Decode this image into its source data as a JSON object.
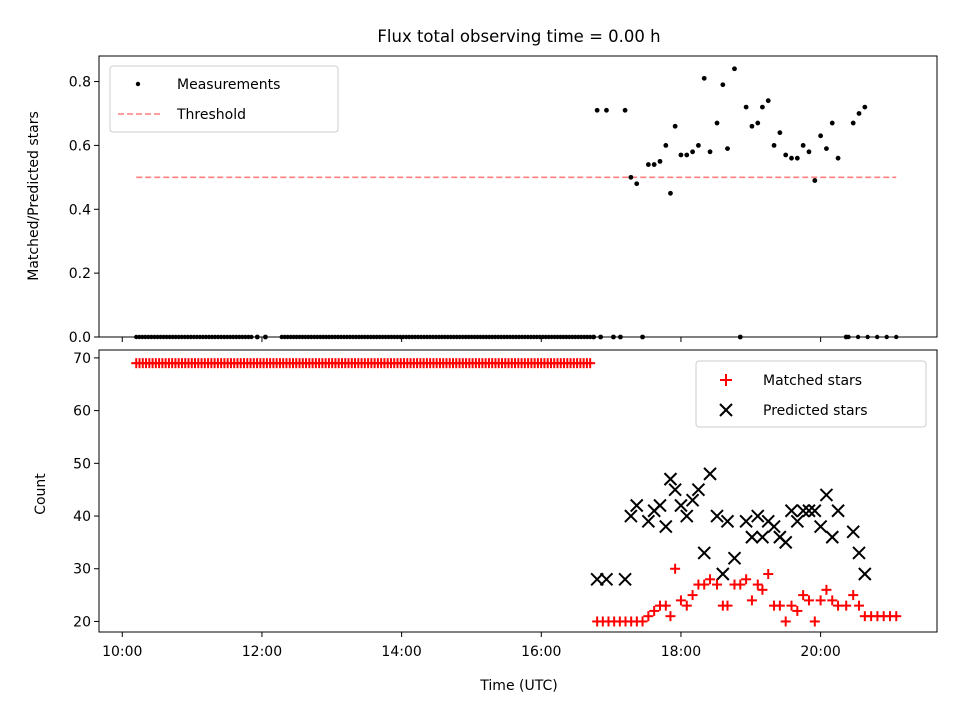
{
  "figure": {
    "title": "Flux total observing time = 0.00 h",
    "xlabel": "Time (UTC)"
  },
  "chart_data": [
    {
      "type": "scatter",
      "title": "Flux total observing time = 0.00 h",
      "xlabel": "",
      "ylabel": "Matched/Predicted stars",
      "xlim": [
        "09:40",
        "21:40"
      ],
      "ylim": [
        0,
        0.88
      ],
      "grid": false,
      "legend": "top-left",
      "yticks": [
        0.0,
        0.2,
        0.4,
        0.6,
        0.8
      ],
      "ytick_labels": [
        "0.0",
        "0.2",
        "0.4",
        "0.6",
        "0.8"
      ],
      "series": [
        {
          "name": "Measurements",
          "marker": "dot",
          "color": "#000000",
          "zero_runs": [
            {
              "start": "10:12",
              "end": "11:51",
              "count": 39
            },
            {
              "start": "12:17",
              "end": "16:42",
              "count": 105
            },
            {
              "start": "20:24",
              "end": "21:05",
              "count": 6
            }
          ],
          "points": [
            {
              "x": "11:56",
              "y": 0
            },
            {
              "x": "12:03",
              "y": 0
            },
            {
              "x": "16:45",
              "y": 0
            },
            {
              "x": "16:51",
              "y": 0
            },
            {
              "x": "16:48",
              "y": 0.71
            },
            {
              "x": "16:56",
              "y": 0.71
            },
            {
              "x": "17:02",
              "y": 0
            },
            {
              "x": "17:08",
              "y": 0
            },
            {
              "x": "17:12",
              "y": 0.71
            },
            {
              "x": "17:17",
              "y": 0.5
            },
            {
              "x": "17:22",
              "y": 0.48
            },
            {
              "x": "17:27",
              "y": 0
            },
            {
              "x": "17:32",
              "y": 0.54
            },
            {
              "x": "17:37",
              "y": 0.54
            },
            {
              "x": "17:42",
              "y": 0.55
            },
            {
              "x": "17:47",
              "y": 0.6
            },
            {
              "x": "17:51",
              "y": 0.45
            },
            {
              "x": "17:55",
              "y": 0.66
            },
            {
              "x": "18:00",
              "y": 0.57
            },
            {
              "x": "18:05",
              "y": 0.57
            },
            {
              "x": "18:10",
              "y": 0.58
            },
            {
              "x": "18:15",
              "y": 0.6
            },
            {
              "x": "18:20",
              "y": 0.81
            },
            {
              "x": "18:25",
              "y": 0.58
            },
            {
              "x": "18:31",
              "y": 0.67
            },
            {
              "x": "18:36",
              "y": 0.79
            },
            {
              "x": "18:40",
              "y": 0.59
            },
            {
              "x": "18:46",
              "y": 0.84
            },
            {
              "x": "18:51",
              "y": 0
            },
            {
              "x": "18:56",
              "y": 0.72
            },
            {
              "x": "19:01",
              "y": 0.66
            },
            {
              "x": "19:06",
              "y": 0.67
            },
            {
              "x": "19:10",
              "y": 0.72
            },
            {
              "x": "19:15",
              "y": 0.74
            },
            {
              "x": "19:20",
              "y": 0.6
            },
            {
              "x": "19:25",
              "y": 0.64
            },
            {
              "x": "19:30",
              "y": 0.57
            },
            {
              "x": "19:35",
              "y": 0.56
            },
            {
              "x": "19:40",
              "y": 0.56
            },
            {
              "x": "19:45",
              "y": 0.6
            },
            {
              "x": "19:50",
              "y": 0.58
            },
            {
              "x": "19:55",
              "y": 0.49
            },
            {
              "x": "20:00",
              "y": 0.63
            },
            {
              "x": "20:05",
              "y": 0.59
            },
            {
              "x": "20:10",
              "y": 0.67
            },
            {
              "x": "20:15",
              "y": 0.56
            },
            {
              "x": "20:22",
              "y": 0
            },
            {
              "x": "20:28",
              "y": 0.67
            },
            {
              "x": "20:33",
              "y": 0.7
            },
            {
              "x": "20:38",
              "y": 0.72
            }
          ]
        },
        {
          "name": "Threshold",
          "marker": "dashed-line",
          "color": "#ff7f7f",
          "points": [
            {
              "x": "10:12",
              "y": 0.5
            },
            {
              "x": "21:05",
              "y": 0.5
            }
          ]
        }
      ]
    },
    {
      "type": "scatter",
      "xlabel": "Time (UTC)",
      "ylabel": "Count",
      "xlim": [
        "09:40",
        "21:40"
      ],
      "ylim": [
        18,
        71.5
      ],
      "grid": false,
      "legend": "top-right",
      "xticks": [
        "10:00",
        "12:00",
        "14:00",
        "16:00",
        "18:00",
        "20:00"
      ],
      "yticks": [
        20,
        30,
        40,
        50,
        60,
        70
      ],
      "series": [
        {
          "name": "Matched stars",
          "marker": "plus",
          "color": "#ff0000",
          "constant_runs": [
            {
              "start": "10:12",
              "end": "16:42",
              "count": 140,
              "y": 69
            },
            {
              "start": "16:48",
              "end": "17:27",
              "count": 9,
              "y": 20
            }
          ],
          "points": [
            {
              "x": "17:32",
              "y": 21
            },
            {
              "x": "17:37",
              "y": 22
            },
            {
              "x": "17:42",
              "y": 23
            },
            {
              "x": "17:47",
              "y": 23
            },
            {
              "x": "17:51",
              "y": 21
            },
            {
              "x": "17:55",
              "y": 30
            },
            {
              "x": "18:00",
              "y": 24
            },
            {
              "x": "18:05",
              "y": 23
            },
            {
              "x": "18:10",
              "y": 25
            },
            {
              "x": "18:15",
              "y": 27
            },
            {
              "x": "18:20",
              "y": 27
            },
            {
              "x": "18:25",
              "y": 28
            },
            {
              "x": "18:31",
              "y": 27
            },
            {
              "x": "18:36",
              "y": 23
            },
            {
              "x": "18:40",
              "y": 23
            },
            {
              "x": "18:46",
              "y": 27
            },
            {
              "x": "18:51",
              "y": 27
            },
            {
              "x": "18:56",
              "y": 28
            },
            {
              "x": "19:01",
              "y": 24
            },
            {
              "x": "19:06",
              "y": 27
            },
            {
              "x": "19:10",
              "y": 26
            },
            {
              "x": "19:15",
              "y": 29
            },
            {
              "x": "19:20",
              "y": 23
            },
            {
              "x": "19:25",
              "y": 23
            },
            {
              "x": "19:30",
              "y": 20
            },
            {
              "x": "19:35",
              "y": 23
            },
            {
              "x": "19:40",
              "y": 22
            },
            {
              "x": "19:45",
              "y": 25
            },
            {
              "x": "19:50",
              "y": 24
            },
            {
              "x": "19:55",
              "y": 20
            },
            {
              "x": "20:00",
              "y": 24
            },
            {
              "x": "20:05",
              "y": 26
            },
            {
              "x": "20:10",
              "y": 24
            },
            {
              "x": "20:15",
              "y": 23
            },
            {
              "x": "20:22",
              "y": 23
            },
            {
              "x": "20:28",
              "y": 25
            },
            {
              "x": "20:33",
              "y": 23
            }
          ],
          "tail_run": {
            "start": "20:38",
            "end": "21:05",
            "count": 6,
            "y": 21
          }
        },
        {
          "name": "Predicted stars",
          "marker": "x",
          "color": "#000000",
          "points": [
            {
              "x": "16:48",
              "y": 28
            },
            {
              "x": "16:56",
              "y": 28
            },
            {
              "x": "17:12",
              "y": 28
            },
            {
              "x": "17:17",
              "y": 40
            },
            {
              "x": "17:22",
              "y": 42
            },
            {
              "x": "17:32",
              "y": 39
            },
            {
              "x": "17:37",
              "y": 41
            },
            {
              "x": "17:42",
              "y": 42
            },
            {
              "x": "17:47",
              "y": 38
            },
            {
              "x": "17:51",
              "y": 47
            },
            {
              "x": "17:55",
              "y": 45
            },
            {
              "x": "18:00",
              "y": 42
            },
            {
              "x": "18:05",
              "y": 40
            },
            {
              "x": "18:10",
              "y": 43
            },
            {
              "x": "18:15",
              "y": 45
            },
            {
              "x": "18:20",
              "y": 33
            },
            {
              "x": "18:25",
              "y": 48
            },
            {
              "x": "18:31",
              "y": 40
            },
            {
              "x": "18:36",
              "y": 29
            },
            {
              "x": "18:40",
              "y": 39
            },
            {
              "x": "18:46",
              "y": 32
            },
            {
              "x": "18:56",
              "y": 39
            },
            {
              "x": "19:01",
              "y": 36
            },
            {
              "x": "19:06",
              "y": 40
            },
            {
              "x": "19:10",
              "y": 36
            },
            {
              "x": "19:15",
              "y": 39
            },
            {
              "x": "19:20",
              "y": 38
            },
            {
              "x": "19:25",
              "y": 36
            },
            {
              "x": "19:30",
              "y": 35
            },
            {
              "x": "19:35",
              "y": 41
            },
            {
              "x": "19:40",
              "y": 39
            },
            {
              "x": "19:45",
              "y": 41
            },
            {
              "x": "19:50",
              "y": 41
            },
            {
              "x": "19:55",
              "y": 41
            },
            {
              "x": "20:00",
              "y": 38
            },
            {
              "x": "20:05",
              "y": 44
            },
            {
              "x": "20:10",
              "y": 36
            },
            {
              "x": "20:15",
              "y": 41
            },
            {
              "x": "20:28",
              "y": 37
            },
            {
              "x": "20:33",
              "y": 33
            },
            {
              "x": "20:38",
              "y": 29
            }
          ]
        }
      ]
    }
  ]
}
